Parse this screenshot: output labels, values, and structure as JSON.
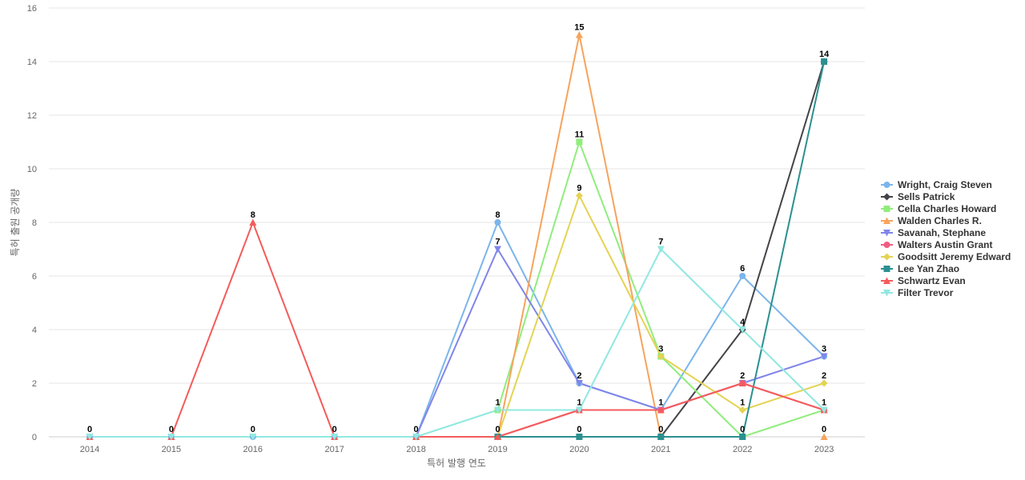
{
  "chart_data": {
    "type": "line",
    "xlabel": "특허 발행 연도",
    "ylabel": "특허 출원 공개량",
    "ylim": [
      0,
      16
    ],
    "ytick_step": 2,
    "grid": true,
    "legend_position": "right",
    "x": [
      "2014",
      "2015",
      "2016",
      "2017",
      "2018",
      "2019",
      "2020",
      "2021",
      "2022",
      "2023"
    ],
    "series": [
      {
        "name": "Wright, Craig Steven",
        "color": "#7cb5ec",
        "marker": "circle",
        "values": [
          0,
          0,
          0,
          0,
          0,
          8,
          2,
          1,
          6,
          3
        ]
      },
      {
        "name": "Sells Patrick",
        "color": "#434348",
        "marker": "diamond",
        "values": [
          null,
          null,
          null,
          null,
          null,
          null,
          null,
          0,
          4,
          14
        ]
      },
      {
        "name": "Cella Charles Howard",
        "color": "#90ed7d",
        "marker": "square",
        "values": [
          null,
          null,
          null,
          null,
          null,
          1,
          11,
          3,
          0,
          1
        ]
      },
      {
        "name": "Walden Charles R.",
        "color": "#f7a35c",
        "marker": "triangle",
        "values": [
          null,
          null,
          null,
          null,
          null,
          0,
          15,
          0,
          null,
          0
        ]
      },
      {
        "name": "Savanah, Stephane",
        "color": "#8085e9",
        "marker": "triangle-down",
        "values": [
          0,
          0,
          0,
          0,
          0,
          7,
          2,
          1,
          2,
          3
        ]
      },
      {
        "name": "Walters Austin Grant",
        "color": "#f15c80",
        "marker": "circle",
        "values": [
          null,
          null,
          null,
          null,
          null,
          0,
          1,
          1,
          2,
          1
        ]
      },
      {
        "name": "Goodsitt Jeremy Edward",
        "color": "#e4d354",
        "marker": "diamond",
        "values": [
          null,
          null,
          null,
          null,
          null,
          0,
          9,
          3,
          1,
          2
        ]
      },
      {
        "name": "Lee Yan Zhao",
        "color": "#2b908f",
        "marker": "square",
        "values": [
          null,
          null,
          null,
          null,
          null,
          0,
          0,
          0,
          0,
          14
        ]
      },
      {
        "name": "Schwartz Evan",
        "color": "#f45b5b",
        "marker": "triangle",
        "values": [
          0,
          0,
          8,
          0,
          0,
          0,
          1,
          1,
          2,
          1
        ]
      },
      {
        "name": "Filter Trevor",
        "color": "#91e8e1",
        "marker": "triangle-down",
        "values": [
          0,
          0,
          0,
          0,
          0,
          1,
          1,
          7,
          4,
          1
        ]
      }
    ],
    "point_labels": [
      {
        "x": "2014",
        "y": 0,
        "text": "0"
      },
      {
        "x": "2015",
        "y": 0,
        "text": "0"
      },
      {
        "x": "2016",
        "y": 0,
        "text": "0"
      },
      {
        "x": "2016",
        "y": 8,
        "text": "8"
      },
      {
        "x": "2017",
        "y": 0,
        "text": "0"
      },
      {
        "x": "2018",
        "y": 0,
        "text": "0"
      },
      {
        "x": "2019",
        "y": 8,
        "text": "8"
      },
      {
        "x": "2019",
        "y": 7,
        "text": "7"
      },
      {
        "x": "2019",
        "y": 1,
        "text": "1"
      },
      {
        "x": "2019",
        "y": 0,
        "text": "0"
      },
      {
        "x": "2020",
        "y": 15,
        "text": "15"
      },
      {
        "x": "2020",
        "y": 11,
        "text": "11"
      },
      {
        "x": "2020",
        "y": 9,
        "text": "9"
      },
      {
        "x": "2020",
        "y": 2,
        "text": "2"
      },
      {
        "x": "2020",
        "y": 1,
        "text": "1"
      },
      {
        "x": "2020",
        "y": 0,
        "text": "0"
      },
      {
        "x": "2021",
        "y": 7,
        "text": "7"
      },
      {
        "x": "2021",
        "y": 3,
        "text": "3"
      },
      {
        "x": "2021",
        "y": 1,
        "text": "1"
      },
      {
        "x": "2021",
        "y": 0,
        "text": "0"
      },
      {
        "x": "2022",
        "y": 6,
        "text": "6"
      },
      {
        "x": "2022",
        "y": 4,
        "text": "4"
      },
      {
        "x": "2022",
        "y": 2,
        "text": "2"
      },
      {
        "x": "2022",
        "y": 1,
        "text": "1"
      },
      {
        "x": "2022",
        "y": 0,
        "text": "0"
      },
      {
        "x": "2023",
        "y": 14,
        "text": "14"
      },
      {
        "x": "2023",
        "y": 3,
        "text": "3"
      },
      {
        "x": "2023",
        "y": 2,
        "text": "2"
      },
      {
        "x": "2023",
        "y": 1,
        "text": "1"
      },
      {
        "x": "2023",
        "y": 0,
        "text": "0"
      }
    ]
  }
}
